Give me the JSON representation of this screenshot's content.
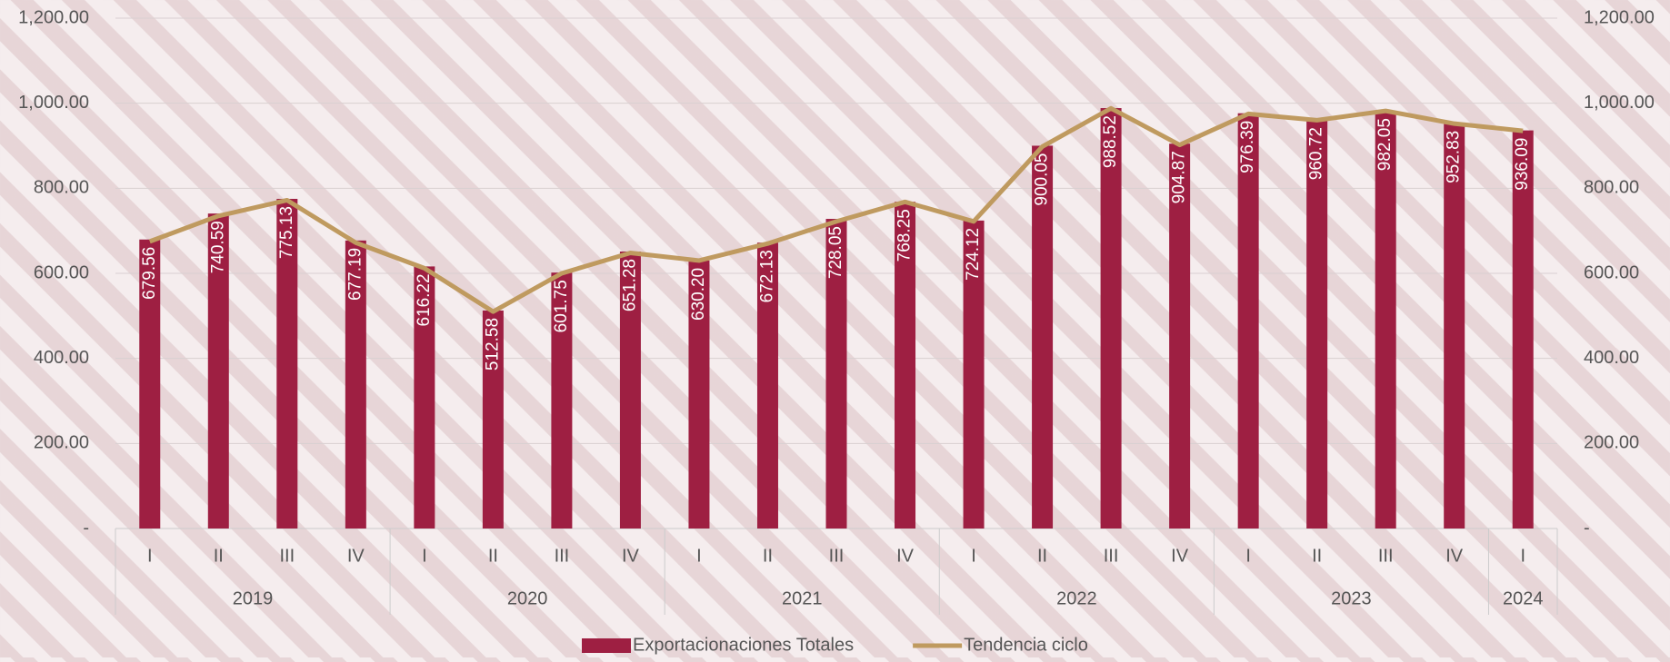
{
  "chart_data": {
    "type": "bar",
    "groups": [
      {
        "name": "2019",
        "categories": [
          "I",
          "II",
          "III",
          "IV"
        ]
      },
      {
        "name": "2020",
        "categories": [
          "I",
          "II",
          "III",
          "IV"
        ]
      },
      {
        "name": "2021",
        "categories": [
          "I",
          "II",
          "III",
          "IV"
        ]
      },
      {
        "name": "2022",
        "categories": [
          "I",
          "II",
          "III",
          "IV"
        ]
      },
      {
        "name": "2023",
        "categories": [
          "I",
          "II",
          "III",
          "IV"
        ]
      },
      {
        "name": "2024",
        "categories": [
          "I"
        ]
      }
    ],
    "series": [
      {
        "name": "Exportacionaciones Totales",
        "type": "bar",
        "color": "#9e1f42",
        "values": [
          679.56,
          740.59,
          775.13,
          677.19,
          616.22,
          512.58,
          601.75,
          651.28,
          630.2,
          672.13,
          728.05,
          768.25,
          724.12,
          900.05,
          988.52,
          904.87,
          976.39,
          960.72,
          982.05,
          952.83,
          936.09
        ],
        "value_labels": [
          "679.56",
          "740.59",
          "775.13",
          "677.19",
          "616.22",
          "512.58",
          "601.75",
          "651.28",
          "630.20",
          "672.13",
          "728.05",
          "768.25",
          "724.12",
          "900.05",
          "988.52",
          "904.87",
          "976.39",
          "960.72",
          "982.05",
          "952.83",
          "936.09"
        ]
      },
      {
        "name": "Tendencia ciclo",
        "type": "line",
        "color": "#bf9a5f",
        "axis": "y2",
        "values": [
          675,
          735,
          772,
          672,
          612,
          510,
          600,
          648,
          630,
          670,
          722,
          768,
          722,
          898,
          988,
          902,
          975,
          960,
          982,
          952,
          935
        ]
      }
    ],
    "ylim": [
      0,
      1200
    ],
    "yticks": [
      {
        "value": 0,
        "label": "-"
      },
      {
        "value": 200,
        "label": "200.00"
      },
      {
        "value": 400,
        "label": "400.00"
      },
      {
        "value": 600,
        "label": "600.00"
      },
      {
        "value": 800,
        "label": "800.00"
      },
      {
        "value": 1000,
        "label": "1,000.00"
      },
      {
        "value": 1200,
        "label": "1,200.00"
      }
    ],
    "y2lim": [
      0,
      1200
    ],
    "y2ticks": [
      {
        "value": 0,
        "label": "-"
      },
      {
        "value": 200,
        "label": "200.00"
      },
      {
        "value": 400,
        "label": "400.00"
      },
      {
        "value": 600,
        "label": "600.00"
      },
      {
        "value": 800,
        "label": "800.00"
      },
      {
        "value": 1000,
        "label": "1,000.00"
      },
      {
        "value": 1200,
        "label": "1,200.00"
      }
    ],
    "grid": true,
    "legend": "bottom"
  }
}
